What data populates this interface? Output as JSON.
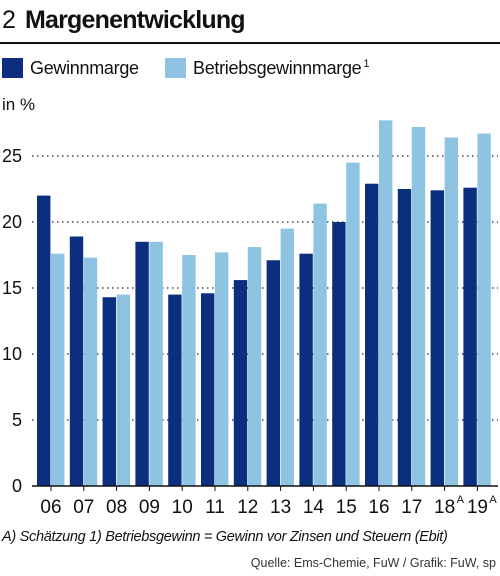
{
  "header": {
    "number": "2",
    "title": "Margenentwicklung"
  },
  "colors": {
    "primary": "#0b2f7e",
    "secondary": "#8ec3e2",
    "grid": "#222222",
    "axis": "#111111"
  },
  "chart_data": {
    "type": "bar",
    "ylabel": "in %",
    "ylim": [
      0,
      28.5
    ],
    "yticks": [
      0,
      5,
      10,
      15,
      20,
      25
    ],
    "grid": "dotted horizontal",
    "legend_position": "top-left",
    "categories": [
      "06",
      "07",
      "08",
      "09",
      "10",
      "11",
      "12",
      "13",
      "14",
      "15",
      "16",
      "17",
      "18",
      "19"
    ],
    "category_superscripts": [
      "",
      "",
      "",
      "",
      "",
      "",
      "",
      "",
      "",
      "",
      "",
      "",
      "A",
      "A"
    ],
    "series": [
      {
        "name": "Gewinnmarge",
        "footnote": "",
        "color": "#0b2f7e",
        "values": [
          22.0,
          18.9,
          14.3,
          18.5,
          14.5,
          14.6,
          15.6,
          17.1,
          17.6,
          20.0,
          22.9,
          22.5,
          22.4,
          22.6
        ]
      },
      {
        "name": "Betriebsgewinnmarge",
        "footnote": "1",
        "color": "#8ec3e2",
        "values": [
          17.6,
          17.3,
          14.5,
          18.5,
          17.5,
          17.7,
          18.1,
          19.5,
          21.4,
          24.5,
          27.7,
          27.2,
          26.4,
          26.7
        ]
      }
    ]
  },
  "footnote": "A) Schätzung    1) Betriebsgewinn = Gewinn vor Zinsen und Steuern (Ebit)",
  "source": "Quelle: Ems-Chemie, FuW / Grafik: FuW, sp"
}
